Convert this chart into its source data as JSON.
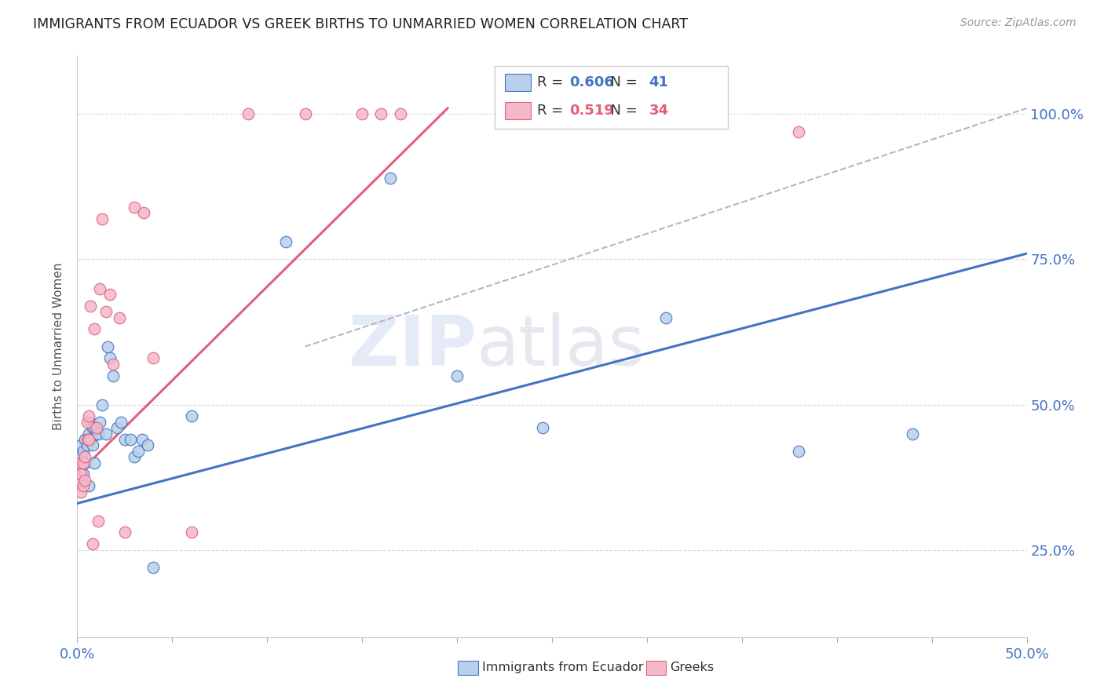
{
  "title": "IMMIGRANTS FROM ECUADOR VS GREEK BIRTHS TO UNMARRIED WOMEN CORRELATION CHART",
  "source": "Source: ZipAtlas.com",
  "ylabel": "Births to Unmarried Women",
  "ytick_labels": [
    "25.0%",
    "50.0%",
    "75.0%",
    "100.0%"
  ],
  "legend_label1": "Immigrants from Ecuador",
  "legend_label2": "Greeks",
  "R1": "0.606",
  "N1": "41",
  "R2": "0.519",
  "N2": "34",
  "color_blue": "#b8d0ea",
  "color_pink": "#f5b8c8",
  "line_blue": "#4472c4",
  "line_pink": "#e0607a",
  "line_gray": "#b0b8c8",
  "blue_line_x": [
    0.0,
    0.5
  ],
  "blue_line_y": [
    0.33,
    0.76
  ],
  "pink_line_x": [
    0.0,
    0.195
  ],
  "pink_line_y": [
    0.38,
    1.01
  ],
  "gray_line_x": [
    0.12,
    0.5
  ],
  "gray_line_y": [
    0.6,
    1.01
  ],
  "blue_points_x": [
    0.001,
    0.002,
    0.002,
    0.003,
    0.003,
    0.004,
    0.004,
    0.005,
    0.006,
    0.006,
    0.007,
    0.007,
    0.008,
    0.008,
    0.009,
    0.009,
    0.01,
    0.011,
    0.012,
    0.013,
    0.015,
    0.016,
    0.017,
    0.019,
    0.021,
    0.023,
    0.025,
    0.028,
    0.03,
    0.032,
    0.034,
    0.037,
    0.04,
    0.06,
    0.11,
    0.165,
    0.2,
    0.245,
    0.31,
    0.38,
    0.44
  ],
  "blue_points_y": [
    0.4,
    0.41,
    0.43,
    0.38,
    0.42,
    0.4,
    0.44,
    0.43,
    0.36,
    0.45,
    0.44,
    0.47,
    0.43,
    0.46,
    0.4,
    0.46,
    0.45,
    0.45,
    0.47,
    0.5,
    0.45,
    0.6,
    0.58,
    0.55,
    0.46,
    0.47,
    0.44,
    0.44,
    0.41,
    0.42,
    0.44,
    0.43,
    0.22,
    0.48,
    0.78,
    0.89,
    0.55,
    0.46,
    0.65,
    0.42,
    0.45
  ],
  "pink_points_x": [
    0.001,
    0.001,
    0.002,
    0.002,
    0.003,
    0.003,
    0.004,
    0.004,
    0.005,
    0.005,
    0.006,
    0.006,
    0.007,
    0.008,
    0.009,
    0.01,
    0.011,
    0.012,
    0.013,
    0.015,
    0.017,
    0.019,
    0.022,
    0.025,
    0.03,
    0.035,
    0.04,
    0.06,
    0.09,
    0.12,
    0.15,
    0.16,
    0.17,
    0.38
  ],
  "pink_points_y": [
    0.37,
    0.4,
    0.35,
    0.38,
    0.36,
    0.4,
    0.37,
    0.41,
    0.44,
    0.47,
    0.44,
    0.48,
    0.67,
    0.26,
    0.63,
    0.46,
    0.3,
    0.7,
    0.82,
    0.66,
    0.69,
    0.57,
    0.65,
    0.28,
    0.84,
    0.83,
    0.58,
    0.28,
    1.0,
    1.0,
    1.0,
    1.0,
    1.0,
    0.97
  ],
  "xlim": [
    0.0,
    0.5
  ],
  "ylim": [
    0.1,
    1.1
  ],
  "yticks": [
    0.25,
    0.5,
    0.75,
    1.0
  ],
  "xticks": [
    0.0,
    0.05,
    0.1,
    0.15,
    0.2,
    0.25,
    0.3,
    0.35,
    0.4,
    0.45,
    0.5
  ],
  "watermark_zip": "ZIP",
  "watermark_atlas": "atlas"
}
